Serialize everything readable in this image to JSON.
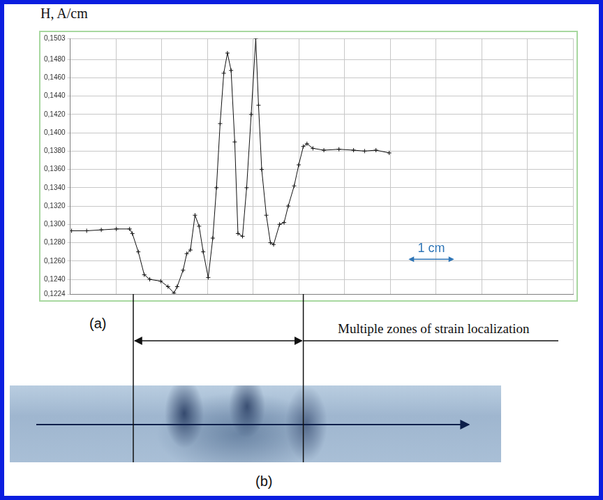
{
  "chart_data": {
    "type": "line",
    "y_label": "H, A/cm",
    "x": [
      0.03,
      0.36,
      0.68,
      1.01,
      1.3,
      1.36,
      1.49,
      1.62,
      1.74,
      1.98,
      2.14,
      2.27,
      2.34,
      2.47,
      2.55,
      2.63,
      2.73,
      2.82,
      2.91,
      3.02,
      3.12,
      3.2,
      3.28,
      3.36,
      3.44,
      3.52,
      3.6,
      3.67,
      3.77,
      3.86,
      3.96,
      4.06,
      4.12,
      4.19,
      4.29,
      4.38,
      4.45,
      4.58,
      4.68,
      4.77,
      4.9,
      5.0,
      5.1,
      5.18,
      5.31,
      5.55,
      5.88,
      6.2,
      6.44,
      6.69,
      6.98
    ],
    "values": [
      0.1293,
      0.1293,
      0.1294,
      0.1295,
      0.1295,
      0.129,
      0.127,
      0.1245,
      0.124,
      0.1238,
      0.1232,
      0.1225,
      0.1232,
      0.125,
      0.1268,
      0.1272,
      0.131,
      0.1298,
      0.127,
      0.1242,
      0.1285,
      0.134,
      0.141,
      0.1465,
      0.1487,
      0.1468,
      0.139,
      0.129,
      0.1287,
      0.134,
      0.142,
      0.1503,
      0.143,
      0.136,
      0.131,
      0.128,
      0.1278,
      0.13,
      0.1302,
      0.132,
      0.1342,
      0.1365,
      0.1385,
      0.1388,
      0.1383,
      0.1381,
      0.1382,
      0.1381,
      0.138,
      0.1381,
      0.1378
    ],
    "color": "#111111",
    "marker": "cross",
    "xlim": [
      0,
      11
    ],
    "xticks": [
      0,
      1,
      2,
      3,
      4,
      5,
      6,
      7,
      8,
      9,
      10,
      11
    ],
    "ylim": [
      0.1224,
      0.1503
    ],
    "yticks": [
      {
        "value": 0.1224,
        "label": "0,1224"
      },
      {
        "value": 0.124,
        "label": "0,1240"
      },
      {
        "value": 0.126,
        "label": "0,1260"
      },
      {
        "value": 0.128,
        "label": "0,1280"
      },
      {
        "value": 0.13,
        "label": "0,1300"
      },
      {
        "value": 0.132,
        "label": "0,1320"
      },
      {
        "value": 0.134,
        "label": "0,1340"
      },
      {
        "value": 0.136,
        "label": "0,1360"
      },
      {
        "value": 0.138,
        "label": "0,1380"
      },
      {
        "value": 0.14,
        "label": "0,1400"
      },
      {
        "value": 0.142,
        "label": "0,1420"
      },
      {
        "value": 0.144,
        "label": "0,1440"
      },
      {
        "value": 0.146,
        "label": "0,1460"
      },
      {
        "value": 0.148,
        "label": "0,1480"
      },
      {
        "value": 0.1503,
        "label": "0,1503"
      }
    ],
    "grid": true,
    "tick_labels": "y",
    "scale_bar": {
      "label": "1 cm",
      "x": [
        7.4,
        8.4
      ],
      "y": 0.1262
    }
  },
  "panel_labels": [
    "(a)",
    "(b)"
  ],
  "zone": {
    "label": "Multiple zones of strain localization",
    "x": [
      1.38,
      5.1
    ]
  }
}
